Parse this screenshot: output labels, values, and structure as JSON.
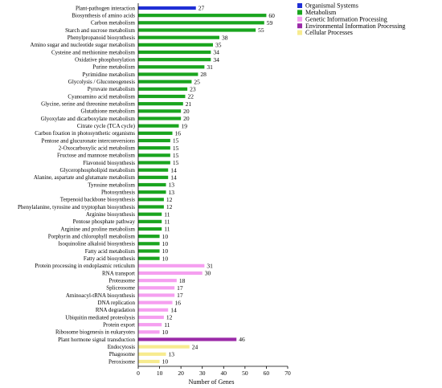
{
  "chart_data": {
    "type": "bar",
    "orientation": "horizontal",
    "xlabel": "Number of Genes",
    "ylabel": "",
    "xlim": [
      0,
      70
    ],
    "xticks": [
      0,
      10,
      20,
      30,
      40,
      50,
      60,
      70
    ],
    "grid": false,
    "legend_position": "top-right",
    "categories": [
      "Plant-pathogen interaction",
      "Biosynthesis of amino acids",
      "Carbon metabolism",
      "Starch and sucrose metabolism",
      "Phenylpropanoid biosynthesis",
      "Amino sugar and nucleotide sugar metabolism",
      "Cysteine and methionine metabolism",
      "Oxidative phosphorylation",
      "Purine metabolism",
      "Pyrimidine metabolism",
      "Glycolysis / Gluconeogenesis",
      "Pyruvate metabolism",
      "Cyanoamino acid metabolism",
      "Glycine, serine and threonine metabolism",
      "Glutathione metabolism",
      "Glyoxylate and dicarboxylate metabolism",
      "Citrate cycle (TCA cycle)",
      "Carbon fixation in photosynthetic organisms",
      "Pentose and glucuronate interconversions",
      "2-Oxocarboxylic acid metabolism",
      "Fructose and mannose metabolism",
      "Flavonoid biosynthesis",
      "Glycerophospholipid metabolism",
      "Alanine, aspartate and glutamate metabolism",
      "Tyrosine metabolism",
      "Photosynthesis",
      "Terpenoid backbone biosynthesis",
      "Phenylalanine, tyrosine and tryptophan biosynthesis",
      "Arginine biosynthesis",
      "Pentose phosphate pathway",
      "Arginine and proline metabolism",
      "Porphyrin and chlorophyll metabolism",
      "Isoquinoline alkaloid biosynthesis",
      "Fatty acid metabolism",
      "Fatty acid biosynthesis",
      "Protein processing in endoplasmic reticulum",
      "RNA transport",
      "Proteasome",
      "Spliceosome",
      "Aminoacyl-tRNA biosynthesis",
      "DNA replication",
      "RNA degradation",
      "Ubiquitin mediated proteolysis",
      "Protein export",
      "Ribosome biogenesis in eukaryotes",
      "Plant hormone signal transduction",
      "Endocytosis",
      "Phagosome",
      "Peroxisome"
    ],
    "values": [
      27,
      60,
      59,
      55,
      38,
      35,
      34,
      34,
      31,
      28,
      25,
      23,
      22,
      21,
      20,
      20,
      19,
      16,
      15,
      15,
      15,
      15,
      14,
      14,
      13,
      13,
      12,
      12,
      11,
      11,
      11,
      10,
      10,
      10,
      10,
      31,
      30,
      18,
      17,
      17,
      16,
      14,
      12,
      11,
      10,
      46,
      24,
      13,
      10
    ],
    "groups": [
      0,
      1,
      1,
      1,
      1,
      1,
      1,
      1,
      1,
      1,
      1,
      1,
      1,
      1,
      1,
      1,
      1,
      1,
      1,
      1,
      1,
      1,
      1,
      1,
      1,
      1,
      1,
      1,
      1,
      1,
      1,
      1,
      1,
      1,
      1,
      2,
      2,
      2,
      2,
      2,
      2,
      2,
      2,
      2,
      2,
      3,
      4,
      4,
      4
    ],
    "legend": [
      {
        "name": "Organismal Systems",
        "color": "#1f2fd6"
      },
      {
        "name": "Metabolism",
        "color": "#1aa51f"
      },
      {
        "name": "Genetic Information Processing",
        "color": "#f59ff0"
      },
      {
        "name": "Environmental Information Processing",
        "color": "#9b2aa8"
      },
      {
        "name": "Cellular Processes",
        "color": "#f7eb8f"
      }
    ]
  }
}
